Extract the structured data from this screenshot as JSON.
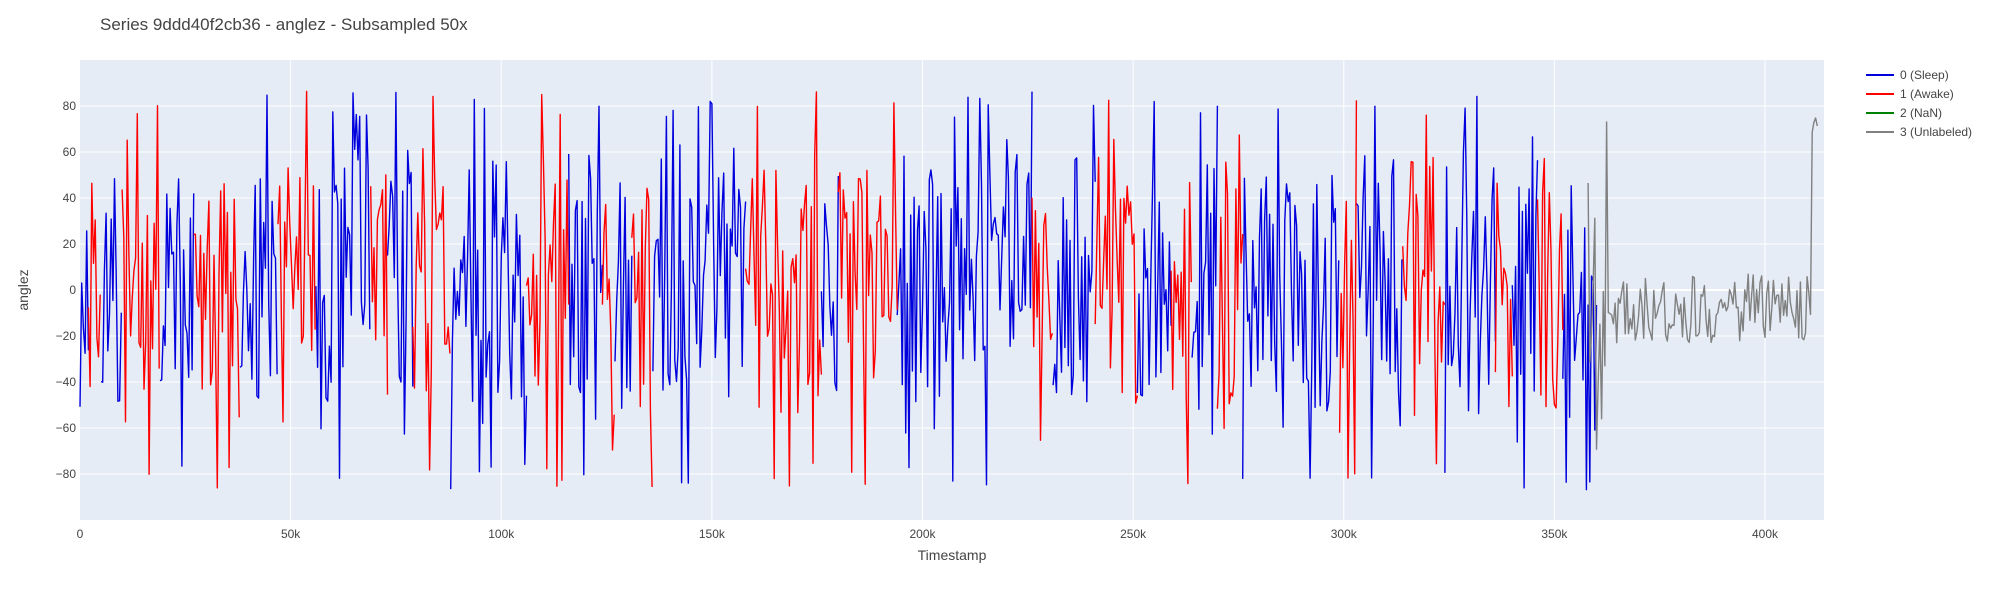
{
  "chart_data": {
    "type": "line",
    "title": "Series 9ddd40f2cb36 - anglez - Subsampled 50x",
    "xlabel": "Timestamp",
    "ylabel": "anglez",
    "xlim": [
      0,
      414000
    ],
    "ylim": [
      -100,
      100
    ],
    "x_ticks": [
      {
        "value": 0,
        "label": "0"
      },
      {
        "value": 50000,
        "label": "50k"
      },
      {
        "value": 100000,
        "label": "100k"
      },
      {
        "value": 150000,
        "label": "150k"
      },
      {
        "value": 200000,
        "label": "200k"
      },
      {
        "value": 250000,
        "label": "250k"
      },
      {
        "value": 300000,
        "label": "300k"
      },
      {
        "value": 350000,
        "label": "350k"
      },
      {
        "value": 400000,
        "label": "400k"
      }
    ],
    "y_ticks": [
      {
        "value": -80,
        "label": "−80"
      },
      {
        "value": -60,
        "label": "−60"
      },
      {
        "value": -40,
        "label": "−40"
      },
      {
        "value": -20,
        "label": "−20"
      },
      {
        "value": 0,
        "label": "0"
      },
      {
        "value": 20,
        "label": "20"
      },
      {
        "value": 40,
        "label": "40"
      },
      {
        "value": 60,
        "label": "60"
      },
      {
        "value": 80,
        "label": "80"
      }
    ],
    "grid": true,
    "legend_position": "top-right",
    "series": [
      {
        "name": "0 (Sleep)",
        "color": "#0000dd",
        "segments": [
          [
            0,
            2000
          ],
          [
            5000,
            10000
          ],
          [
            19000,
            27000
          ],
          [
            38000,
            47000
          ],
          [
            56000,
            69000
          ],
          [
            73000,
            79000
          ],
          [
            88000,
            106000
          ],
          [
            116000,
            124000
          ],
          [
            127000,
            131000
          ],
          [
            136000,
            158000
          ],
          [
            176000,
            180000
          ],
          [
            194000,
            226000
          ],
          [
            231000,
            241000
          ],
          [
            251000,
            259000
          ],
          [
            264000,
            270000
          ],
          [
            276000,
            299000
          ],
          [
            303000,
            314000
          ],
          [
            324000,
            336000
          ],
          [
            340000,
            346000
          ],
          [
            352000,
            360000
          ]
        ],
        "amplitude": 70
      },
      {
        "name": "1 (Awake)",
        "color": "#ff0000",
        "segments": [
          [
            2000,
            5000
          ],
          [
            10000,
            19000
          ],
          [
            27000,
            38000
          ],
          [
            47000,
            56000
          ],
          [
            69000,
            73000
          ],
          [
            79000,
            88000
          ],
          [
            106000,
            116000
          ],
          [
            124000,
            127000
          ],
          [
            131000,
            136000
          ],
          [
            158000,
            176000
          ],
          [
            180000,
            194000
          ],
          [
            226000,
            231000
          ],
          [
            241000,
            251000
          ],
          [
            259000,
            264000
          ],
          [
            270000,
            276000
          ],
          [
            299000,
            303000
          ],
          [
            314000,
            324000
          ],
          [
            336000,
            340000
          ],
          [
            346000,
            352000
          ]
        ],
        "amplitude": 70
      },
      {
        "name": "2 (NaN)",
        "color": "#008000",
        "segments": [],
        "amplitude": 0
      },
      {
        "name": "3 (Unlabeled)",
        "color": "#808080",
        "segments": [
          [
            358000,
            412500
          ]
        ],
        "amplitude": 15
      }
    ]
  }
}
